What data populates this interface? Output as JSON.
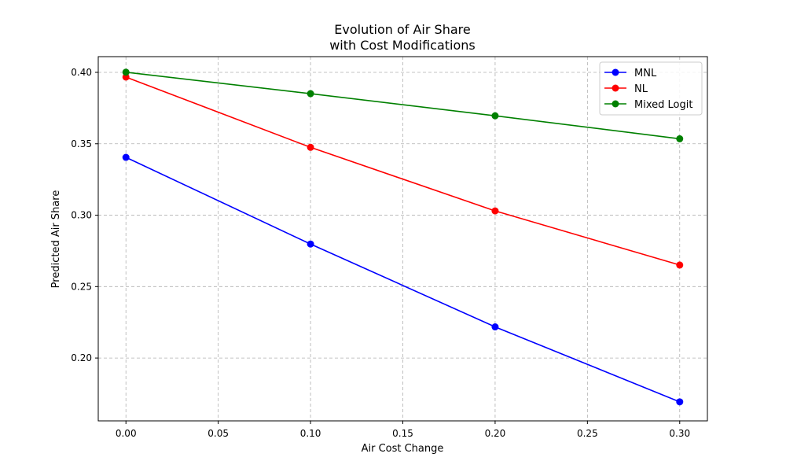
{
  "chart_data": {
    "type": "line",
    "title": "Evolution of Air Share\nwith Cost Modifications",
    "xlabel": "Air Cost Change",
    "ylabel": "Predicted Air Share",
    "x": [
      0.0,
      0.1,
      0.2,
      0.3
    ],
    "xlim": [
      -0.015,
      0.315
    ],
    "ylim": [
      0.156,
      0.411
    ],
    "xticks": [
      0.0,
      0.05,
      0.1,
      0.15,
      0.2,
      0.25,
      0.3
    ],
    "xtick_labels": [
      "0.00",
      "0.05",
      "0.10",
      "0.15",
      "0.20",
      "0.25",
      "0.30"
    ],
    "yticks": [
      0.2,
      0.25,
      0.3,
      0.35,
      0.4
    ],
    "ytick_labels": [
      "0.20",
      "0.25",
      "0.30",
      "0.35",
      "0.40"
    ],
    "grid": true,
    "legend_position": "top-right",
    "series": [
      {
        "name": "MNL",
        "color": "#0000ff",
        "values": [
          0.3405,
          0.2798,
          0.2218,
          0.1693
        ]
      },
      {
        "name": "NL",
        "color": "#ff0000",
        "values": [
          0.3967,
          0.3475,
          0.303,
          0.2651
        ]
      },
      {
        "name": "Mixed Logit",
        "color": "#008000",
        "values": [
          0.4001,
          0.3851,
          0.3696,
          0.3535
        ]
      }
    ]
  }
}
